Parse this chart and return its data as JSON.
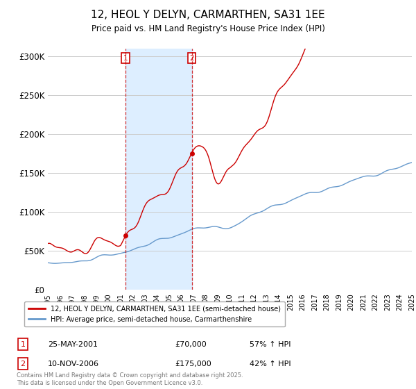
{
  "title": "12, HEOL Y DELYN, CARMARTHEN, SA31 1EE",
  "subtitle": "Price paid vs. HM Land Registry's House Price Index (HPI)",
  "ylim": [
    0,
    310000
  ],
  "yticks": [
    0,
    50000,
    100000,
    150000,
    200000,
    250000,
    300000
  ],
  "ytick_labels": [
    "£0",
    "£50K",
    "£100K",
    "£150K",
    "£200K",
    "£250K",
    "£300K"
  ],
  "sale1_date": "25-MAY-2001",
  "sale1_price": 70000,
  "sale1_year": 2001.39,
  "sale1_hpi": "57% ↑ HPI",
  "sale2_date": "10-NOV-2006",
  "sale2_price": 175000,
  "sale2_year": 2006.86,
  "sale2_hpi": "42% ↑ HPI",
  "legend_label_red": "12, HEOL Y DELYN, CARMARTHEN, SA31 1EE (semi-detached house)",
  "legend_label_blue": "HPI: Average price, semi-detached house, Carmarthenshire",
  "footer": "Contains HM Land Registry data © Crown copyright and database right 2025.\nThis data is licensed under the Open Government Licence v3.0.",
  "red_color": "#cc0000",
  "blue_color": "#6699cc",
  "shaded_color": "#ddeeff",
  "background_color": "#ffffff",
  "grid_color": "#cccccc"
}
